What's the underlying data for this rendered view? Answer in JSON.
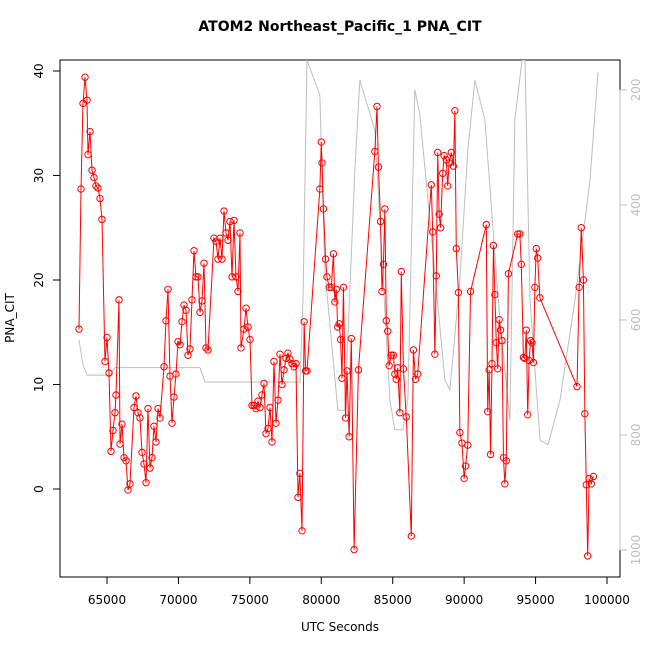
{
  "chart_data": {
    "type": "line",
    "title": "ATOM2 Northeast_Pacific_1 PNA_CIT",
    "xlabel": "UTC Seconds",
    "ylabel": "PNA_CIT",
    "xlim": [
      61710,
      100910
    ],
    "ylim": [
      -8.42,
      41.05
    ],
    "y2lim": [
      1047,
      148
    ],
    "xticks": [
      65000,
      70000,
      75000,
      80000,
      85000,
      90000,
      95000,
      100000
    ],
    "yticks": [
      0,
      10,
      20,
      30,
      40
    ],
    "y2ticks": [
      200,
      400,
      600,
      800,
      1000
    ],
    "series": [
      {
        "color": "#bebebe",
        "axis": "y2",
        "x": [
          63040,
          63320,
          63600,
          65210,
          65560,
          71510,
          71860,
          78510,
          78720,
          79000,
          79900,
          80250,
          81160,
          81650,
          82350,
          82700,
          83750,
          84800,
          85150,
          85710,
          86060,
          86550,
          86900,
          87600,
          88650,
          89000,
          89700,
          90260,
          90750,
          91450,
          92500,
          93200,
          93550,
          94050,
          94260,
          94610,
          95310,
          95870,
          96710,
          97760,
          98810,
          99370
        ],
        "values": [
          635,
          678,
          696,
          696,
          683,
          683,
          708,
          708,
          565,
          148,
          209,
          513,
          757,
          757,
          339,
          183,
          270,
          739,
          791,
          791,
          739,
          200,
          243,
          426,
          704,
          722,
          530,
          304,
          183,
          252,
          600,
          774,
          252,
          148,
          148,
          565,
          809,
          817,
          739,
          565,
          357,
          170
        ]
      },
      {
        "color": "#ff0000",
        "markers": true,
        "x": [
          63040,
          63180,
          63320,
          63460,
          63600,
          63670,
          63810,
          63950,
          64090,
          64230,
          64370,
          64510,
          64650,
          64860,
          65000,
          65140,
          65280,
          65420,
          65560,
          65630,
          65840,
          65910,
          66050,
          66190,
          66330,
          66470,
          66610,
          66890,
          67030,
          67170,
          67310,
          67450,
          67590,
          67730,
          67870,
          68010,
          68150,
          68290,
          68430,
          68570,
          68710,
          68990,
          69130,
          69270,
          69410,
          69550,
          69690,
          69830,
          69970,
          70110,
          70250,
          70390,
          70530,
          70670,
          70810,
          70950,
          71090,
          71230,
          71370,
          71510,
          71650,
          71790,
          71930,
          72070,
          72490,
          72630,
          72770,
          72910,
          73050,
          73190,
          73330,
          73470,
          73610,
          73750,
          73890,
          74030,
          74170,
          74310,
          74380,
          74590,
          74730,
          74870,
          75010,
          75150,
          75290,
          75430,
          75570,
          75710,
          75850,
          75990,
          76130,
          76270,
          76410,
          76550,
          76690,
          76830,
          76970,
          77110,
          77250,
          77390,
          77530,
          77670,
          77810,
          77950,
          78090,
          78230,
          78370,
          78500,
          78650,
          78800,
          78900,
          79000,
          79900,
          80000,
          80050,
          80150,
          80300,
          80400,
          80550,
          80700,
          80850,
          80950,
          81050,
          81150,
          81250,
          81350,
          81450,
          81550,
          81700,
          81800,
          81950,
          82100,
          82300,
          82600,
          83750,
          83900,
          84000,
          84150,
          84250,
          84350,
          84450,
          84550,
          84650,
          84750,
          84900,
          85050,
          85150,
          85250,
          85350,
          85500,
          85600,
          85750,
          85950,
          86300,
          86450,
          86600,
          86750,
          87700,
          87800,
          87950,
          88050,
          88150,
          88250,
          88350,
          88500,
          88600,
          88750,
          88850,
          88950,
          89100,
          89250,
          89350,
          89450,
          89600,
          89700,
          89850,
          90000,
          90100,
          90250,
          90450,
          91550,
          91650,
          91750,
          91850,
          91950,
          92050,
          92150,
          92250,
          92350,
          92450,
          92550,
          92650,
          92750,
          92850,
          92950,
          93100,
          93750,
          93900,
          94000,
          94150,
          94250,
          94350,
          94450,
          94550,
          94650,
          94750,
          94850,
          94950,
          95050,
          95150,
          95300,
          97900,
          98050,
          98200,
          98350,
          98450,
          98550,
          98650,
          98750,
          98900,
          99050
        ],
        "values": [
          15.3,
          28.7,
          36.9,
          39.4,
          37.2,
          32.0,
          34.2,
          30.5,
          29.8,
          29.0,
          28.8,
          27.8,
          25.8,
          12.2,
          14.5,
          11.1,
          3.6,
          5.6,
          7.3,
          9.0,
          18.1,
          4.3,
          6.2,
          3.0,
          2.7,
          -0.1,
          0.5,
          7.8,
          8.9,
          7.3,
          6.8,
          3.5,
          2.4,
          0.6,
          7.7,
          2.0,
          3.0,
          6.0,
          4.5,
          7.7,
          6.8,
          11.7,
          16.1,
          19.1,
          10.8,
          6.3,
          8.8,
          11.0,
          14.1,
          13.8,
          16.0,
          17.6,
          17.1,
          12.8,
          13.4,
          18.1,
          22.8,
          20.3,
          20.3,
          16.9,
          18.0,
          21.6,
          13.5,
          13.3,
          24.0,
          23.7,
          22.0,
          24.0,
          22.0,
          26.6,
          24.5,
          23.8,
          25.6,
          20.3,
          25.7,
          20.3,
          18.9,
          24.5,
          13.5,
          15.3,
          17.3,
          15.5,
          14.3,
          8.0,
          8.0,
          7.7,
          8.4,
          7.8,
          9.0,
          10.1,
          5.3,
          5.8,
          7.8,
          4.5,
          12.2,
          6.3,
          8.5,
          12.9,
          10.0,
          11.4,
          12.5,
          13.0,
          12.4,
          12.0,
          11.7,
          12.0,
          -0.8,
          1.5,
          -4.0,
          16.0,
          11.3,
          11.3,
          28.7,
          33.2,
          31.2,
          26.8,
          22.0,
          20.3,
          19.3,
          19.3,
          22.5,
          17.9,
          19.1,
          15.5,
          15.8,
          14.3,
          10.6,
          19.3,
          6.8,
          11.3,
          5.0,
          14.4,
          -5.8,
          11.4,
          32.3,
          36.6,
          30.8,
          25.6,
          18.9,
          21.5,
          26.8,
          16.1,
          15.1,
          11.8,
          12.8,
          12.8,
          11.0,
          10.5,
          11.6,
          7.3,
          20.8,
          11.5,
          6.9,
          -4.5,
          13.3,
          10.5,
          11.0,
          29.1,
          24.6,
          12.9,
          20.4,
          32.2,
          26.3,
          25.0,
          30.2,
          31.9,
          31.5,
          29.0,
          31.2,
          32.2,
          30.9,
          36.2,
          23.0,
          18.8,
          5.4,
          4.4,
          1.0,
          2.2,
          4.2,
          18.9,
          25.3,
          7.4,
          11.4,
          3.3,
          12.0,
          23.3,
          18.6,
          14.0,
          11.5,
          16.2,
          15.2,
          14.2,
          3.0,
          0.5,
          2.7,
          20.6,
          24.4,
          24.4,
          21.5,
          12.6,
          12.5,
          15.2,
          7.1,
          12.3,
          14.2,
          14.0,
          12.1,
          19.3,
          23.0,
          22.1,
          18.3,
          9.8,
          19.3,
          25.0,
          20.0,
          7.2,
          0.4,
          -6.4,
          1.0,
          0.5,
          1.2
        ]
      }
    ]
  }
}
